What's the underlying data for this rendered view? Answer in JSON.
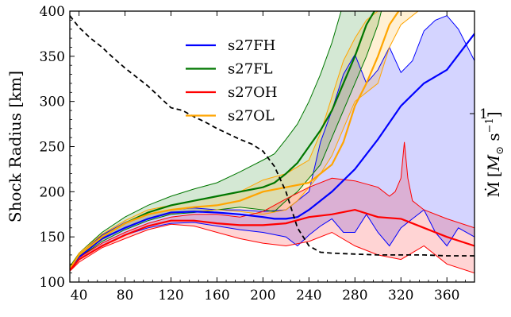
{
  "chart_data": {
    "type": "line",
    "ylabel": "Shock Radius [km]",
    "right_ylabel_parts": {
      "mdot": "Ṁ",
      "bracket_open": "[",
      "msun": "M",
      "sun_sub": "⊙",
      "space": " ",
      "s": "s",
      "exp": "−1",
      "bracket_close": "]"
    },
    "right_tick": "1",
    "xlim": [
      32,
      384
    ],
    "ylim": [
      100,
      400
    ],
    "x_ticks": [
      40,
      80,
      120,
      160,
      200,
      240,
      280,
      320,
      360
    ],
    "y_ticks": [
      100,
      150,
      200,
      250,
      300,
      350,
      400
    ],
    "grid": false,
    "legend_position": "upper-center",
    "colors": {
      "s27FH": "#0000ff",
      "s27FL": "#007700",
      "s27OH": "#ff0000",
      "s27OL": "#ffa500",
      "mdot": "#000000"
    },
    "series": [
      {
        "name": "s27FH",
        "mean": {
          "x": [
            32,
            40,
            60,
            80,
            100,
            120,
            140,
            160,
            180,
            200,
            210,
            220,
            230,
            240,
            260,
            280,
            300,
            320,
            340,
            360,
            384
          ],
          "y": [
            115,
            128,
            148,
            160,
            170,
            177,
            178,
            177,
            175,
            172,
            170,
            170,
            172,
            180,
            200,
            225,
            258,
            295,
            320,
            335,
            375
          ]
        },
        "upper": {
          "x": [
            32,
            40,
            60,
            80,
            100,
            120,
            140,
            160,
            180,
            200,
            220,
            240,
            250,
            260,
            270,
            280,
            290,
            300,
            310,
            320,
            330,
            340,
            350,
            360,
            370,
            384
          ],
          "y": [
            116,
            130,
            152,
            166,
            175,
            180,
            182,
            180,
            180,
            178,
            180,
            200,
            255,
            290,
            330,
            352,
            320,
            335,
            360,
            332,
            345,
            378,
            390,
            395,
            380,
            345
          ]
        },
        "lower": {
          "x": [
            32,
            40,
            60,
            80,
            100,
            120,
            140,
            160,
            180,
            200,
            220,
            230,
            240,
            250,
            260,
            270,
            280,
            290,
            300,
            310,
            320,
            330,
            340,
            350,
            360,
            370,
            384
          ],
          "y": [
            114,
            125,
            140,
            152,
            160,
            165,
            166,
            162,
            158,
            155,
            150,
            140,
            152,
            162,
            170,
            155,
            155,
            175,
            155,
            140,
            160,
            170,
            180,
            155,
            140,
            160,
            150
          ]
        }
      },
      {
        "name": "s27FL",
        "mean": {
          "x": [
            32,
            40,
            60,
            80,
            100,
            120,
            140,
            160,
            180,
            200,
            210,
            220,
            230,
            240,
            250,
            260,
            270,
            280,
            290,
            297
          ],
          "y": [
            116,
            130,
            150,
            165,
            177,
            185,
            190,
            195,
            200,
            205,
            210,
            220,
            232,
            250,
            268,
            290,
            320,
            350,
            385,
            400
          ]
        },
        "upper": {
          "x": [
            32,
            40,
            60,
            80,
            100,
            120,
            140,
            160,
            180,
            200,
            210,
            220,
            230,
            240,
            250,
            260,
            268,
            300
          ],
          "y": [
            117,
            132,
            155,
            172,
            185,
            195,
            203,
            210,
            222,
            235,
            242,
            258,
            275,
            300,
            330,
            365,
            400,
            400
          ]
        },
        "lower": {
          "x": [
            32,
            40,
            60,
            80,
            100,
            120,
            140,
            160,
            180,
            200,
            210,
            220,
            230,
            240,
            250,
            260,
            270,
            280,
            290,
            300,
            303
          ],
          "y": [
            115,
            127,
            145,
            158,
            168,
            175,
            177,
            180,
            183,
            180,
            178,
            190,
            200,
            215,
            230,
            260,
            290,
            320,
            350,
            385,
            400
          ]
        }
      },
      {
        "name": "s27OH",
        "mean": {
          "x": [
            32,
            40,
            60,
            80,
            100,
            120,
            140,
            160,
            180,
            200,
            220,
            240,
            260,
            280,
            300,
            320,
            340,
            360,
            384
          ],
          "y": [
            113,
            125,
            140,
            152,
            162,
            168,
            168,
            165,
            163,
            163,
            165,
            172,
            175,
            180,
            172,
            170,
            160,
            150,
            140
          ]
        },
        "upper": {
          "x": [
            32,
            40,
            60,
            80,
            100,
            120,
            140,
            160,
            180,
            200,
            220,
            240,
            260,
            280,
            300,
            310,
            315,
            320,
            323,
            326,
            330,
            340,
            360,
            384
          ],
          "y": [
            114,
            127,
            143,
            155,
            165,
            172,
            175,
            175,
            172,
            178,
            192,
            205,
            215,
            212,
            205,
            195,
            200,
            215,
            255,
            215,
            190,
            180,
            170,
            160
          ]
        },
        "lower": {
          "x": [
            32,
            40,
            60,
            80,
            100,
            120,
            140,
            160,
            180,
            200,
            220,
            240,
            260,
            280,
            300,
            320,
            340,
            360,
            384
          ],
          "y": [
            112,
            122,
            138,
            148,
            158,
            164,
            162,
            155,
            148,
            143,
            140,
            145,
            155,
            140,
            130,
            125,
            140,
            120,
            110
          ]
        }
      },
      {
        "name": "s27OL",
        "mean": {
          "x": [
            32,
            40,
            60,
            80,
            100,
            120,
            140,
            160,
            180,
            200,
            220,
            240,
            260,
            270,
            280,
            290,
            300,
            310,
            318
          ],
          "y": [
            115,
            130,
            150,
            165,
            175,
            180,
            183,
            185,
            190,
            200,
            205,
            210,
            230,
            255,
            295,
            320,
            350,
            385,
            400
          ]
        },
        "upper": {
          "x": [
            32,
            40,
            60,
            80,
            100,
            120,
            140,
            160,
            180,
            200,
            220,
            240,
            250,
            260,
            270,
            280,
            290,
            300,
            315
          ],
          "y": [
            116,
            132,
            153,
            168,
            180,
            185,
            190,
            195,
            200,
            213,
            220,
            235,
            265,
            305,
            345,
            370,
            390,
            400,
            400
          ]
        },
        "lower": {
          "x": [
            32,
            40,
            60,
            80,
            100,
            120,
            140,
            160,
            180,
            200,
            220,
            230,
            240,
            250,
            260,
            270,
            280,
            290,
            300,
            310,
            320,
            330,
            335
          ],
          "y": [
            114,
            128,
            147,
            160,
            170,
            176,
            178,
            180,
            178,
            175,
            180,
            190,
            205,
            220,
            240,
            270,
            300,
            310,
            320,
            360,
            385,
            395,
            400
          ]
        }
      },
      {
        "name": "Mdot",
        "style": "dashed",
        "x": [
          32,
          40,
          50,
          60,
          70,
          80,
          90,
          100,
          110,
          120,
          130,
          140,
          150,
          160,
          170,
          180,
          190,
          200,
          210,
          220,
          230,
          240,
          250,
          260,
          280,
          300,
          320,
          340,
          360,
          384
        ],
        "y": [
          395,
          382,
          370,
          360,
          348,
          337,
          327,
          317,
          305,
          293,
          290,
          283,
          277,
          270,
          264,
          258,
          253,
          245,
          228,
          200,
          160,
          140,
          133,
          132,
          131,
          130,
          130,
          130,
          129,
          129
        ]
      }
    ]
  }
}
